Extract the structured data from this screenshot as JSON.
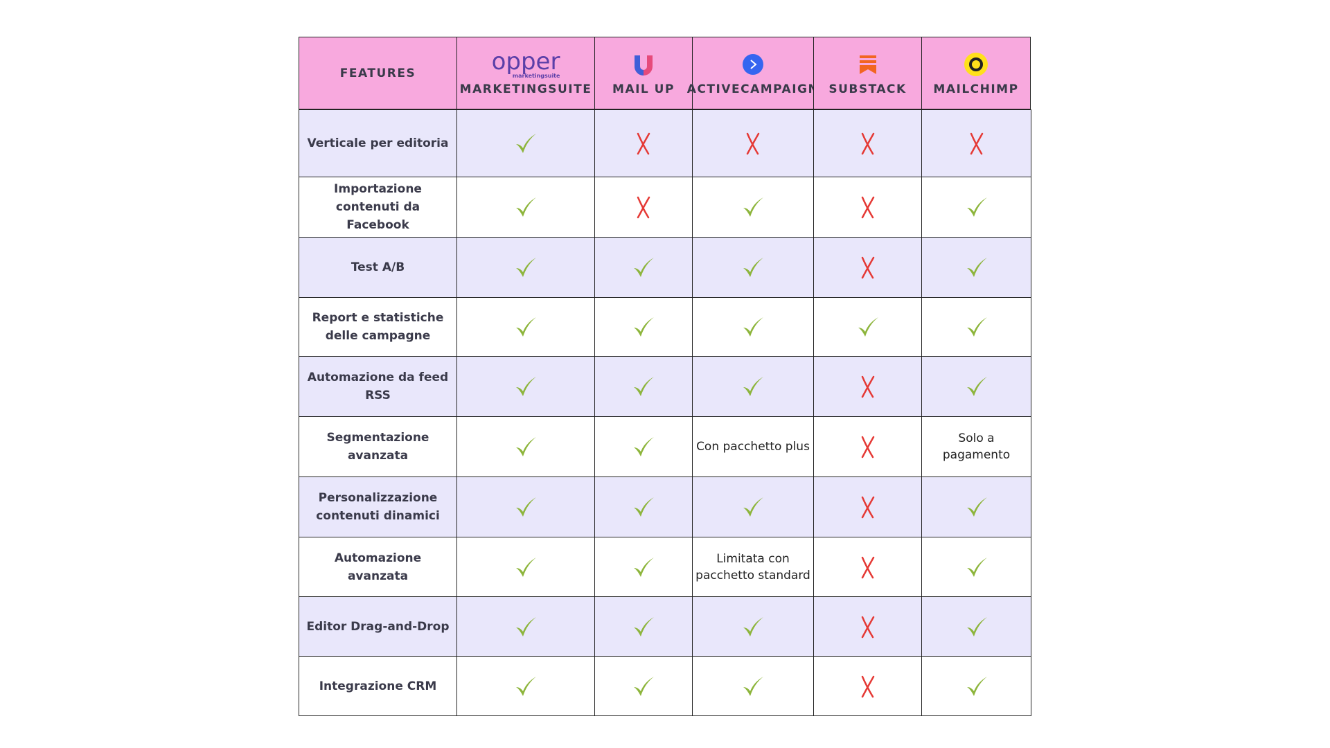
{
  "header": {
    "features": "FEATURES",
    "logo_text": "opper",
    "logo_subtext": "marketingsuite",
    "columns": [
      "MARKETINGSUITE",
      "MAIL UP",
      "ACTIVECAMPAIGN",
      "SUBSTACK",
      "MAILCHIMP"
    ]
  },
  "table": {
    "rows": [
      [
        "Verticale per editoria",
        true,
        false,
        false,
        false,
        false
      ],
      [
        "Importazione contenuti da Facebook",
        true,
        false,
        true,
        false,
        true
      ],
      [
        "Test A/B",
        true,
        true,
        true,
        false,
        true
      ],
      [
        "Report e statistiche delle campagne",
        true,
        true,
        true,
        true,
        true
      ],
      [
        "Automazione da feed RSS",
        true,
        true,
        true,
        false,
        true
      ],
      [
        "Segmentazione avanzata",
        true,
        true,
        "Con pacchetto plus",
        false,
        "Solo a pagamento"
      ],
      [
        "Personalizzazione contenuti dinamici",
        true,
        true,
        true,
        false,
        true
      ],
      [
        "Automazione avanzata",
        true,
        true,
        "Limitata con pacchetto standard",
        false,
        true
      ],
      [
        "Editor Drag-and-Drop",
        true,
        true,
        true,
        false,
        true
      ],
      [
        "Integrazione CRM",
        true,
        true,
        true,
        false,
        true
      ]
    ]
  }
}
